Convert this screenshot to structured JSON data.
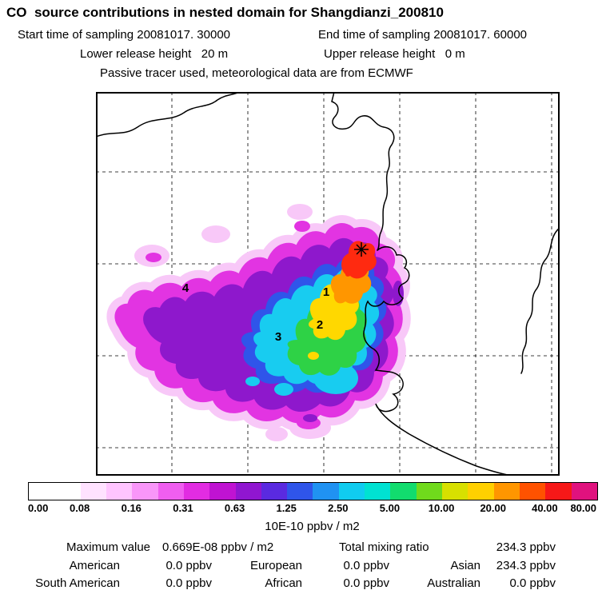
{
  "header": {
    "title": "CO  source contributions in nested domain for Shangdianzi_200810",
    "sampling_start": "Start time of sampling 20081017. 30000",
    "sampling_end": "End time of sampling 20081017. 60000",
    "lower_release": "Lower release height   20 m",
    "upper_release": "Upper release height   0 m",
    "tracer_line": "Passive tracer used, meteorological data are from ECMWF"
  },
  "map": {
    "markers": [
      {
        "label": "1"
      },
      {
        "label": "2"
      },
      {
        "label": "3"
      },
      {
        "label": "4"
      }
    ]
  },
  "colorbar": {
    "cells": [
      "#ffffff",
      "#ffffff",
      "#ffe2ff",
      "#ffc4ff",
      "#f996f9",
      "#f05ef0",
      "#e22ce2",
      "#c013d2",
      "#9016d0",
      "#5a2ae0",
      "#2f55ea",
      "#2092f2",
      "#10ccf0",
      "#00e2d2",
      "#12dc6e",
      "#70da1c",
      "#d8e000",
      "#ffd000",
      "#ff9600",
      "#ff5200",
      "#f71818",
      "#e0127e"
    ],
    "ticks": [
      "0.00",
      "0.08",
      "0.16",
      "0.31",
      "0.63",
      "1.25",
      "2.50",
      "5.00",
      "10.00",
      "20.00",
      "40.00",
      "80.00"
    ],
    "unit": "10E-10 ppbv / m2"
  },
  "stats": {
    "max_label": "Maximum value",
    "max_value": "0.669E-08 ppbv / m2",
    "total_label": "Total mixing ratio",
    "total_value": "234.3 ppbv",
    "regions": [
      {
        "name": "American",
        "value": "0.0 ppbv"
      },
      {
        "name": "European",
        "value": "0.0 ppbv"
      },
      {
        "name": "Asian",
        "value": "234.3 ppbv"
      },
      {
        "name": "South American",
        "value": "0.0 ppbv"
      },
      {
        "name": "African",
        "value": "0.0 ppbv"
      },
      {
        "name": "Australian",
        "value": "0.0 ppbv"
      }
    ]
  },
  "chart_data": {
    "type": "heatmap",
    "title": "CO source contributions in nested domain for Shangdianzi_200810",
    "station": "Shangdianzi_200810",
    "sampling_start": "20081017. 30000",
    "sampling_end": "20081017. 60000",
    "lower_release_height_m": 20,
    "upper_release_height_m": 0,
    "note": "Passive tracer used, meteorological data are from ECMWF",
    "colorbar_levels": [
      0.0,
      0.08,
      0.16,
      0.31,
      0.63,
      1.25,
      2.5,
      5.0,
      10.0,
      20.0,
      40.0,
      80.0
    ],
    "colorbar_unit": "10E-10 ppbv / m2",
    "maximum_value": "0.669E-08 ppbv / m2",
    "total_mixing_ratio_ppbv": 234.3,
    "contributions_ppbv": {
      "American": 0.0,
      "European": 0.0,
      "Asian": 234.3,
      "South American": 0.0,
      "African": 0.0,
      "Australian": 0.0
    },
    "plume_annotations": [
      "1",
      "2",
      "3",
      "4"
    ],
    "receptor_marker": "asterisk at station location on map",
    "legend_position": "bottom horizontal colorbar",
    "grid": "dashed lat-lon grid over map"
  }
}
